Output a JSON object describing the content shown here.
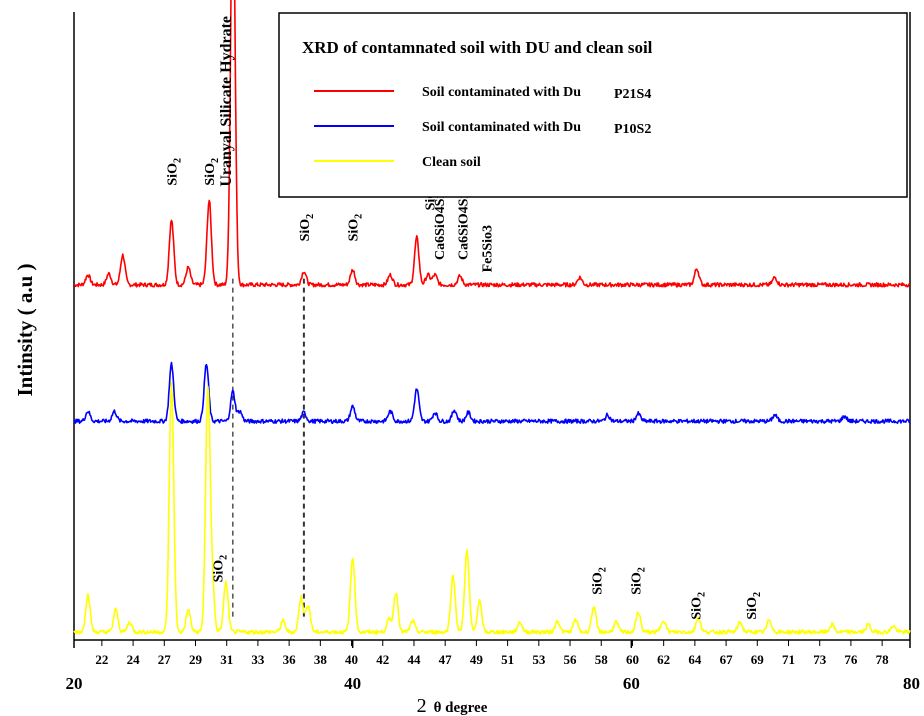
{
  "chart_data": {
    "type": "line",
    "title": "XRD of contamnated soil with DU and clean soil",
    "xlabel_prefix": "2",
    "xlabel_theta": "θ degree",
    "ylabel": "Intinsity ( a.u )",
    "xlim": [
      20,
      80
    ],
    "major_ticks": [
      {
        "x": 20,
        "label": "20"
      },
      {
        "x": 40,
        "label": "40"
      },
      {
        "x": 60,
        "label": "60"
      },
      {
        "x": 80,
        "label": "80"
      }
    ],
    "minor_tick_labels": [
      "22",
      "24",
      "27",
      "29",
      "31",
      "33",
      "36",
      "38",
      "40",
      "42",
      "44",
      "47",
      "49",
      "51",
      "53",
      "56",
      "58",
      "60",
      "62",
      "64",
      "67",
      "69",
      "71",
      "73",
      "76",
      "78"
    ],
    "series": [
      {
        "name": "Soil contaminated with Du",
        "sample": "P21S4",
        "color": "#ff0000",
        "baseline": 0.28,
        "peaks": [
          [
            21,
            0.008
          ],
          [
            22.5,
            0.009
          ],
          [
            23.5,
            0.024
          ],
          [
            27,
            0.052
          ],
          [
            28.2,
            0.014
          ],
          [
            29.7,
            0.068
          ],
          [
            31.4,
            0.335
          ],
          [
            36.5,
            0.011
          ],
          [
            40,
            0.012
          ],
          [
            42.7,
            0.008
          ],
          [
            44.6,
            0.038
          ],
          [
            45.4,
            0.008
          ],
          [
            45.9,
            0.008
          ],
          [
            47.7,
            0.007
          ],
          [
            56.3,
            0.006
          ],
          [
            64.7,
            0.013
          ],
          [
            70.3,
            0.006
          ]
        ]
      },
      {
        "name": "Soil contaminated with Du",
        "sample": "P10S2",
        "color": "#0000ff",
        "baseline": 0.17,
        "peaks": [
          [
            21,
            0.008
          ],
          [
            22.9,
            0.008
          ],
          [
            27,
            0.046
          ],
          [
            29.5,
            0.046
          ],
          [
            31.4,
            0.024
          ],
          [
            31.9,
            0.008
          ],
          [
            36.5,
            0.007
          ],
          [
            40,
            0.012
          ],
          [
            42.7,
            0.008
          ],
          [
            44.6,
            0.026
          ],
          [
            45.9,
            0.007
          ],
          [
            47.3,
            0.009
          ],
          [
            48.3,
            0.007
          ],
          [
            58.3,
            0.005
          ],
          [
            60.5,
            0.006
          ],
          [
            70.3,
            0.005
          ],
          [
            75.3,
            0.004
          ]
        ]
      },
      {
        "name": "Clean soil",
        "color": "#ffff00",
        "baseline": 0.0,
        "peaks": [
          [
            21,
            0.03
          ],
          [
            23,
            0.018
          ],
          [
            24,
            0.008
          ],
          [
            27,
            0.2
          ],
          [
            28.2,
            0.018
          ],
          [
            29.6,
            0.19
          ],
          [
            29.9,
            0.04
          ],
          [
            30.9,
            0.04
          ],
          [
            35,
            0.009
          ],
          [
            36.3,
            0.028
          ],
          [
            36.8,
            0.022
          ],
          [
            40,
            0.06
          ],
          [
            42.6,
            0.01
          ],
          [
            43.1,
            0.032
          ],
          [
            44.3,
            0.009
          ],
          [
            47.2,
            0.045
          ],
          [
            48.2,
            0.065
          ],
          [
            49.1,
            0.025
          ],
          [
            52,
            0.008
          ],
          [
            54.7,
            0.009
          ],
          [
            56,
            0.01
          ],
          [
            57.3,
            0.02
          ],
          [
            58.9,
            0.008
          ],
          [
            60.5,
            0.016
          ],
          [
            62.3,
            0.01
          ],
          [
            64.8,
            0.012
          ],
          [
            67.8,
            0.008
          ],
          [
            69.9,
            0.01
          ],
          [
            74.4,
            0.006
          ],
          [
            77,
            0.006
          ],
          [
            78.8,
            0.005
          ]
        ]
      }
    ],
    "vlines": [
      31.4,
      36.5
    ],
    "legend": {
      "title": "XRD of contamnated soil with DU and clean soil",
      "placement": "top-right",
      "entries": [
        {
          "color": "#ff0000",
          "label": "Soil contaminated with Du",
          "sample": "P21S4"
        },
        {
          "color": "#0000ff",
          "label": "Soil contaminated with Du",
          "sample": "P10S2"
        },
        {
          "color": "#ffff00",
          "label": "Clean soil",
          "sample": ""
        }
      ]
    },
    "annotations": [
      {
        "id": "sio2-27",
        "base": "SiO",
        "sub": "2",
        "x": 27,
        "y_level": 0.36
      },
      {
        "id": "sio2-29",
        "base": "SiO",
        "sub": "2",
        "x": 29.7,
        "y_level": 0.36
      },
      {
        "id": "uranyl",
        "base": "Uranyal Silicate Hydrate",
        "sub": "",
        "x": 31.4,
        "y_level": 0.62
      },
      {
        "id": "sio2-36",
        "base": "SiO",
        "sub": "2",
        "x": 36.5,
        "y_level": 0.315
      },
      {
        "id": "sio2-40",
        "base": "SiO",
        "sub": "2",
        "x": 40,
        "y_level": 0.315
      },
      {
        "id": "sio2-45",
        "base": "SiO",
        "sub": "2",
        "x": 45.5,
        "y_level": 0.34
      },
      {
        "id": "ca6-a",
        "base": "Ca6SiO4Si3 O10",
        "sub": "",
        "x": 46.2,
        "y_level": 0.3
      },
      {
        "id": "ca6-b",
        "base": "Ca6SiO4Si3 O10",
        "sub": "",
        "x": 47.9,
        "y_level": 0.3
      },
      {
        "id": "fe5",
        "base": "Fe5Sio3",
        "sub": "",
        "x": 49.6,
        "y_level": 0.29
      },
      {
        "id": "sio2-29b",
        "base": "SiO",
        "sub": "2",
        "x": 30.3,
        "y_level": 0.04
      },
      {
        "id": "sio2-58",
        "base": "SiO",
        "sub": "2",
        "x": 57.5,
        "y_level": 0.03
      },
      {
        "id": "sio2-60",
        "base": "SiO",
        "sub": "2",
        "x": 60.3,
        "y_level": 0.03
      },
      {
        "id": "sio2-64",
        "base": "SiO",
        "sub": "2",
        "x": 64.6,
        "y_level": 0.01
      },
      {
        "id": "sio2-68",
        "base": "SiO",
        "sub": "2",
        "x": 68.6,
        "y_level": 0.01
      }
    ]
  }
}
